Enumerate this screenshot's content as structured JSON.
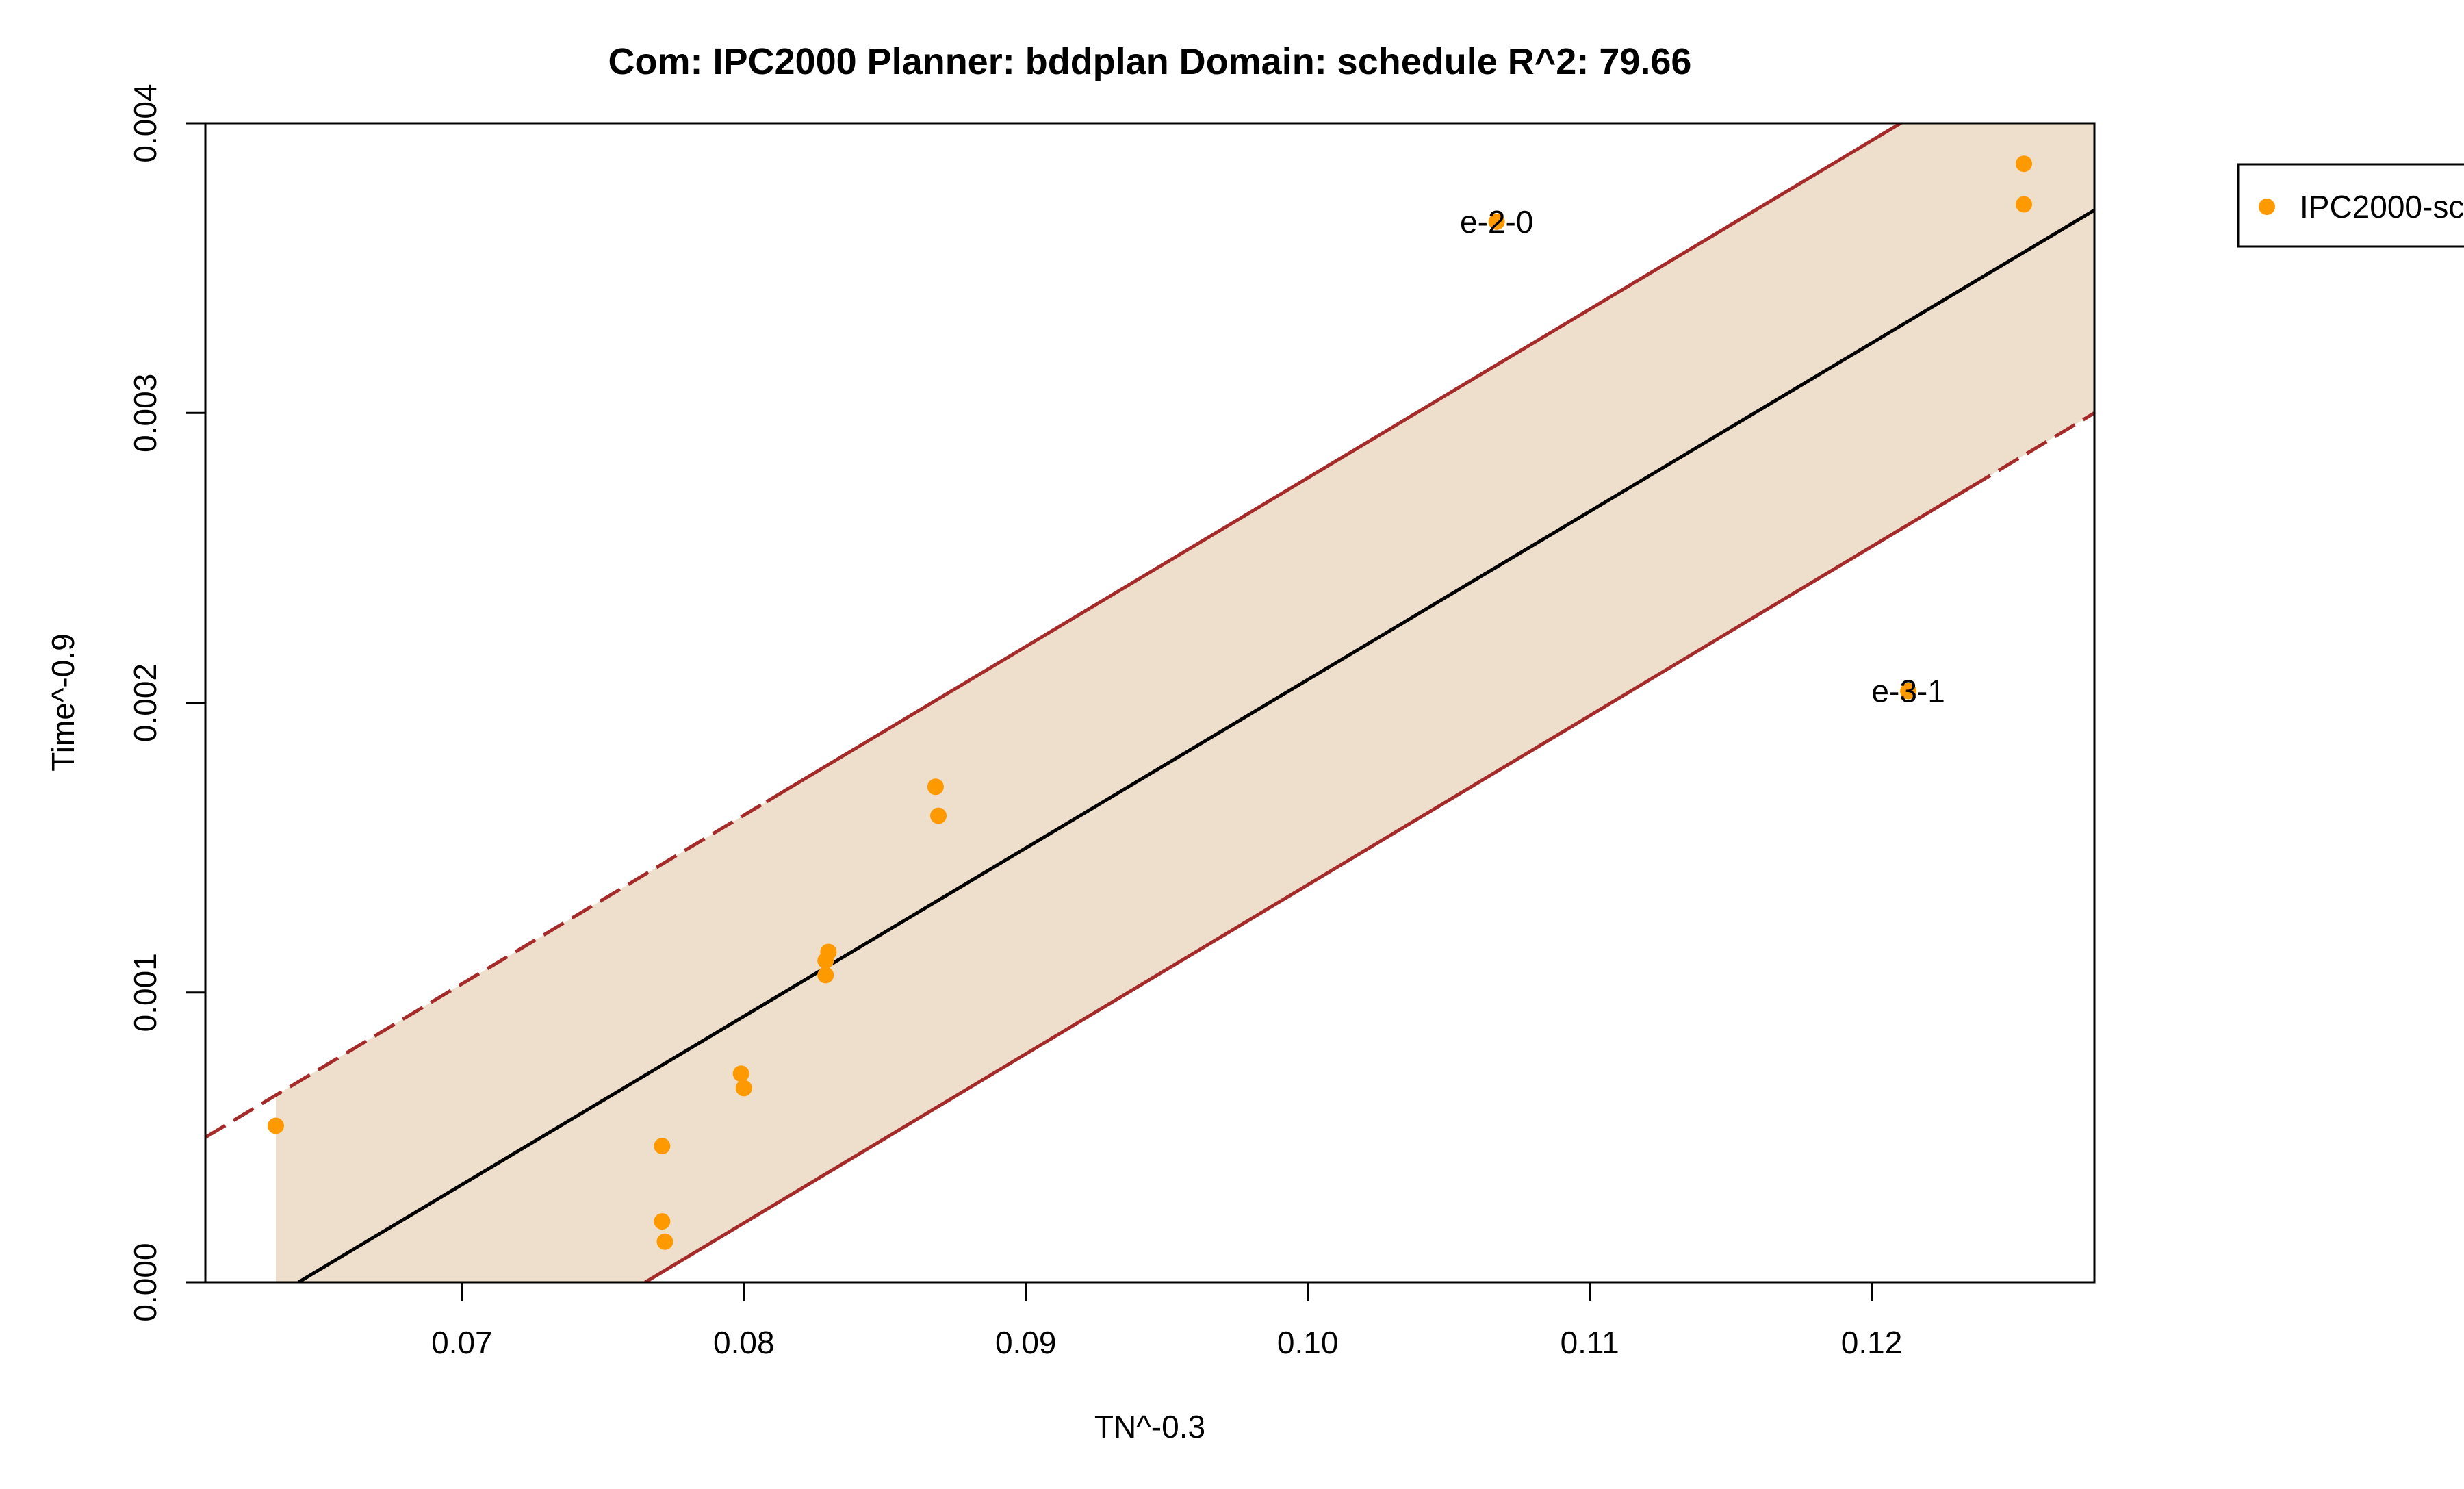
{
  "chart_data": {
    "type": "scatter",
    "title": "Com: IPC2000 Planner: bddplan Domain: schedule R^2: 79.66",
    "xlabel": "TN^-0.3",
    "ylabel": "Time^-0.9",
    "xlim": [
      0.0609,
      0.1279
    ],
    "ylim": [
      0.0,
      0.004
    ],
    "xticks": [
      0.07,
      0.08,
      0.09,
      0.1,
      0.11,
      0.12
    ],
    "xtick_labels": [
      "0.07",
      "0.08",
      "0.09",
      "0.10",
      "0.11",
      "0.12"
    ],
    "yticks": [
      0.0,
      0.001,
      0.002,
      0.003,
      0.004
    ],
    "ytick_labels": [
      "0.000",
      "0.001",
      "0.002",
      "0.003",
      "0.004"
    ],
    "grid": false,
    "legend_position": "top-right",
    "series": [
      {
        "name": "IPC2000-sc",
        "color": "#FF9900",
        "points": [
          {
            "x": 0.0634,
            "y": 0.00054
          },
          {
            "x": 0.0771,
            "y": 0.00047
          },
          {
            "x": 0.0771,
            "y": 0.00021
          },
          {
            "x": 0.0772,
            "y": 0.00014
          },
          {
            "x": 0.0799,
            "y": 0.00072
          },
          {
            "x": 0.08,
            "y": 0.00067
          },
          {
            "x": 0.083,
            "y": 0.00114
          },
          {
            "x": 0.0829,
            "y": 0.00111
          },
          {
            "x": 0.0829,
            "y": 0.00106
          },
          {
            "x": 0.0868,
            "y": 0.00171
          },
          {
            "x": 0.0869,
            "y": 0.00161
          },
          {
            "x": 0.1067,
            "y": 0.00366,
            "label": "e-2-0"
          },
          {
            "x": 0.1213,
            "y": 0.00204,
            "label": "e-3-1"
          },
          {
            "x": 0.1254,
            "y": 0.00386
          },
          {
            "x": 0.1254,
            "y": 0.00372
          }
        ]
      }
    ],
    "fit": {
      "color": "#000000",
      "points": [
        [
          0.0642,
          0.0
        ],
        [
          0.1279,
          0.0037
        ]
      ]
    },
    "band": {
      "fill": "#EEDFCC",
      "x_range": [
        0.0634,
        0.1279
      ]
    },
    "upper_bound": {
      "color": "#A52A2A",
      "points": [
        [
          0.0609,
          0.0005
        ],
        [
          0.1279,
          0.0044
        ]
      ],
      "dashed_below_x": 0.0808
    },
    "lower_bound": {
      "color": "#A52A2A",
      "points": [
        [
          0.0765,
          0.0
        ],
        [
          0.1279,
          0.003
        ]
      ],
      "dashed_above_x": 0.1235
    }
  }
}
